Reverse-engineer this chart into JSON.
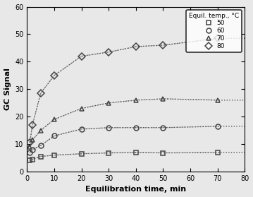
{
  "title": "",
  "xlabel": "Equilibration time, min",
  "ylabel": "GC Signal",
  "xlim": [
    0,
    80
  ],
  "ylim": [
    0,
    60
  ],
  "xticks": [
    0,
    10,
    20,
    30,
    40,
    50,
    60,
    70,
    80
  ],
  "yticks": [
    0,
    10,
    20,
    30,
    40,
    50,
    60
  ],
  "legend_title": "Equil. temp., °C",
  "series": [
    {
      "label": "50",
      "marker": "s",
      "x": [
        1,
        2,
        5,
        10,
        20,
        30,
        40,
        50,
        70
      ],
      "y": [
        4.0,
        4.5,
        5.5,
        6.0,
        6.5,
        6.8,
        7.0,
        6.8,
        7.0
      ]
    },
    {
      "label": "60",
      "marker": "o",
      "x": [
        1,
        2,
        5,
        10,
        20,
        30,
        40,
        50,
        70
      ],
      "y": [
        7.0,
        8.0,
        9.5,
        13.0,
        15.5,
        16.0,
        16.0,
        16.0,
        16.5
      ]
    },
    {
      "label": "70",
      "marker": "^",
      "x": [
        1,
        2,
        5,
        10,
        20,
        30,
        40,
        50,
        70
      ],
      "y": [
        9.0,
        11.5,
        15.0,
        19.0,
        23.0,
        25.0,
        26.0,
        26.5,
        26.0
      ]
    },
    {
      "label": "80",
      "marker": "D",
      "x": [
        1,
        2,
        5,
        10,
        20,
        30,
        40,
        50,
        70
      ],
      "y": [
        10.5,
        17.0,
        28.5,
        35.0,
        42.0,
        43.5,
        45.5,
        46.0,
        48.5
      ]
    }
  ],
  "line_color": "#555555",
  "marker_color": "#444444",
  "marker_size": 5,
  "figsize": [
    3.59,
    2.79
  ],
  "dpi": 100,
  "bg_color": "#e8e8e8"
}
